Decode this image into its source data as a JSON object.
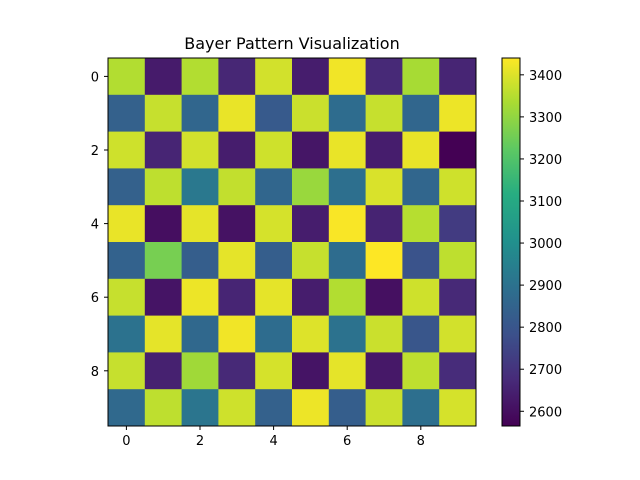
{
  "chart_data": {
    "type": "heatmap",
    "title": "Bayer Pattern Visualization",
    "xlabel": "",
    "ylabel": "",
    "x_ticks": [
      "0",
      "2",
      "4",
      "6",
      "8"
    ],
    "y_ticks": [
      "0",
      "2",
      "4",
      "6",
      "8"
    ],
    "rows": 10,
    "cols": 10,
    "values": [
      [
        3345,
        2635,
        3345,
        2665,
        3385,
        2640,
        3425,
        2670,
        3330,
        2660
      ],
      [
        2840,
        3370,
        2860,
        3415,
        2815,
        3375,
        2880,
        3370,
        2860,
        3420
      ],
      [
        3380,
        2660,
        3385,
        2640,
        3380,
        2620,
        3415,
        2640,
        3415,
        2565
      ],
      [
        2840,
        3360,
        2920,
        3365,
        2860,
        3310,
        2890,
        3395,
        2860,
        3380
      ],
      [
        3415,
        2600,
        3410,
        2610,
        3390,
        2640,
        3435,
        2655,
        3350,
        2720
      ],
      [
        2845,
        3260,
        2830,
        3410,
        2830,
        3370,
        2880,
        3440,
        2790,
        3360
      ],
      [
        3370,
        2615,
        3420,
        2660,
        3410,
        2640,
        3345,
        2605,
        3380,
        2670
      ],
      [
        2900,
        3410,
        2865,
        3425,
        2880,
        3400,
        2900,
        3375,
        2800,
        3385
      ],
      [
        3370,
        2650,
        3320,
        2670,
        3390,
        2615,
        3410,
        2625,
        3360,
        2680
      ],
      [
        2870,
        3360,
        2910,
        3380,
        2840,
        3420,
        2830,
        3375,
        2890,
        3390
      ]
    ],
    "colormap": "viridis",
    "colorbar": {
      "min": 2565,
      "max": 3440,
      "ticks": [
        "2600",
        "2700",
        "2800",
        "2900",
        "3000",
        "3100",
        "3200",
        "3300",
        "3400"
      ]
    },
    "grid": false,
    "legend": false
  }
}
